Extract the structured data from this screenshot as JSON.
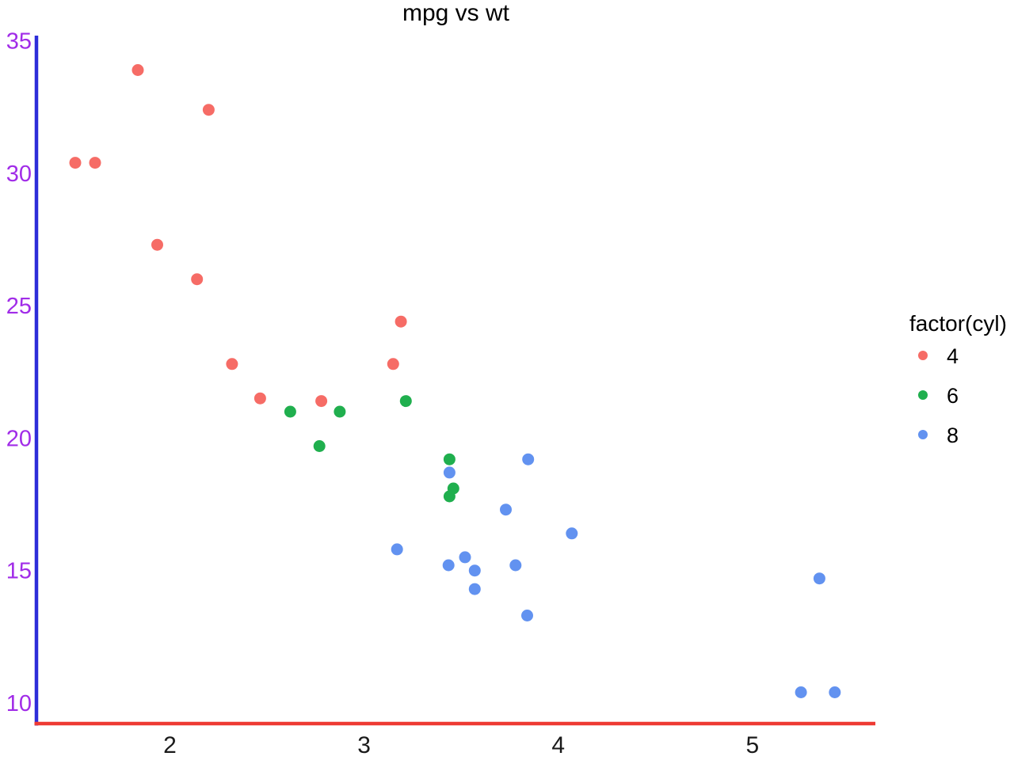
{
  "chart_data": {
    "type": "scatter",
    "title": "mpg vs wt",
    "xlabel": "",
    "ylabel": "",
    "x_ticks": [
      2,
      3,
      4,
      5
    ],
    "y_ticks": [
      10,
      15,
      20,
      25,
      30,
      35
    ],
    "xlim": [
      1.313,
      5.633
    ],
    "ylim": [
      9.22,
      35.2
    ],
    "grid": false,
    "point_radius_px": 7.5,
    "axis_colors": {
      "x_axis_line": "#ee3a33",
      "y_axis_line": "#2d2dd9",
      "tick_text": "#a12ce8",
      "title_text": "#000000"
    },
    "legend": {
      "title": "factor(cyl)",
      "position": "right",
      "entries": [
        {
          "label": "4",
          "color": "#f66c66"
        },
        {
          "label": "6",
          "color": "#20af4e"
        },
        {
          "label": "8",
          "color": "#6292f0"
        }
      ]
    },
    "series": [
      {
        "name": "4",
        "color": "#f66c66",
        "points": [
          [
            2.32,
            22.8
          ],
          [
            3.19,
            24.4
          ],
          [
            3.15,
            22.8
          ],
          [
            2.2,
            32.4
          ],
          [
            1.615,
            30.4
          ],
          [
            1.835,
            33.9
          ],
          [
            2.465,
            21.5
          ],
          [
            1.935,
            27.3
          ],
          [
            2.14,
            26.0
          ],
          [
            1.513,
            30.4
          ],
          [
            2.78,
            21.4
          ]
        ]
      },
      {
        "name": "6",
        "color": "#20af4e",
        "points": [
          [
            2.62,
            21.0
          ],
          [
            2.875,
            21.0
          ],
          [
            3.215,
            21.4
          ],
          [
            3.46,
            18.1
          ],
          [
            3.44,
            19.2
          ],
          [
            3.44,
            17.8
          ],
          [
            2.77,
            19.7
          ]
        ]
      },
      {
        "name": "8",
        "color": "#6292f0",
        "points": [
          [
            3.44,
            18.7
          ],
          [
            3.57,
            14.3
          ],
          [
            4.07,
            16.4
          ],
          [
            3.73,
            17.3
          ],
          [
            3.78,
            15.2
          ],
          [
            5.25,
            10.4
          ],
          [
            5.424,
            10.4
          ],
          [
            5.345,
            14.7
          ],
          [
            3.52,
            15.5
          ],
          [
            3.435,
            15.2
          ],
          [
            3.84,
            13.3
          ],
          [
            3.845,
            19.2
          ],
          [
            3.17,
            15.8
          ],
          [
            3.57,
            15.0
          ]
        ]
      }
    ]
  }
}
